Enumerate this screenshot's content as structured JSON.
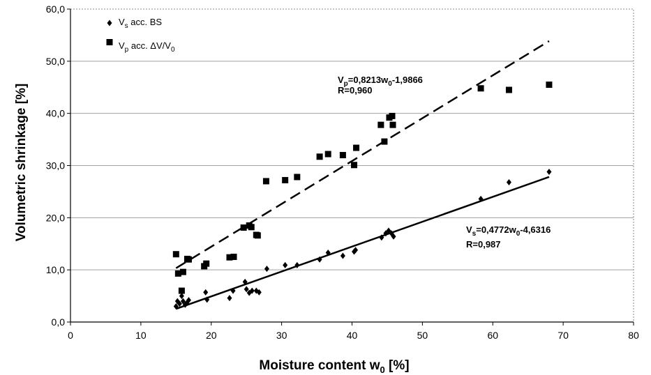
{
  "chart_data": {
    "type": "scatter",
    "xlabel": "Moisture content  w",
    "xlabel_sub": "0",
    "xlabel_unit": " [%]",
    "ylabel": "Volumetric shrinkage [%]",
    "xlim": [
      0,
      80
    ],
    "ylim": [
      0,
      60
    ],
    "x_ticks": [
      "0",
      "10",
      "20",
      "30",
      "40",
      "50",
      "60",
      "70",
      "80"
    ],
    "y_ticks": [
      "0,0",
      "10,0",
      "20,0",
      "30,0",
      "40,0",
      "50,0",
      "60,0"
    ],
    "grid": "horizontal",
    "legend_position": "top-left",
    "series": [
      {
        "name": "Vs acc. BS",
        "legend": {
          "v": "V",
          "sub": "s",
          "rest": " acc. BS"
        },
        "marker": "diamond",
        "x": [
          15.0,
          15.2,
          15.5,
          15.8,
          16.0,
          16.3,
          16.8,
          16.5,
          19.2,
          19.4,
          22.6,
          23.1,
          24.8,
          25.0,
          25.4,
          25.8,
          26.4,
          26.8,
          27.9,
          30.5,
          32.2,
          35.4,
          36.6,
          38.7,
          40.3,
          40.5,
          44.2,
          44.8,
          45.2,
          45.6,
          45.9,
          58.3,
          62.3,
          68.0
        ],
        "y": [
          3.0,
          4.0,
          3.5,
          5.0,
          4.0,
          3.3,
          4.2,
          3.6,
          5.7,
          4.3,
          4.6,
          6.0,
          7.7,
          6.3,
          5.6,
          6.0,
          6.0,
          5.7,
          10.2,
          10.9,
          10.9,
          12.0,
          13.3,
          12.7,
          13.5,
          13.8,
          16.2,
          17.0,
          17.5,
          17.0,
          16.4,
          23.6,
          26.8,
          28.8
        ]
      },
      {
        "name": "Vp acc. ΔV/V0",
        "legend": {
          "v": "V",
          "sub": "p",
          "rest": " acc. ΔV/V",
          "sub2": "0"
        },
        "marker": "square",
        "x": [
          15.0,
          15.3,
          15.8,
          16.0,
          16.6,
          16.8,
          19.0,
          19.3,
          22.6,
          23.2,
          24.6,
          25.4,
          25.7,
          26.4,
          26.6,
          27.8,
          30.5,
          32.2,
          35.4,
          36.6,
          38.7,
          40.3,
          40.6,
          44.1,
          44.6,
          45.3,
          45.7,
          45.8,
          58.3,
          62.3,
          68.0
        ],
        "y": [
          13.0,
          9.3,
          6.0,
          9.6,
          12.1,
          12.0,
          10.7,
          11.2,
          12.4,
          12.5,
          18.1,
          18.5,
          18.2,
          16.7,
          16.6,
          27.0,
          27.2,
          27.8,
          31.7,
          32.2,
          32.0,
          30.1,
          33.4,
          37.8,
          34.6,
          39.2,
          39.5,
          37.8,
          44.8,
          44.5,
          45.5
        ]
      }
    ],
    "fits": [
      {
        "series": "Vs acc. BS",
        "slope": 0.4772,
        "intercept": -4.6316,
        "x_range": [
          15,
          68
        ],
        "style": "solid",
        "equation": {
          "v": "V",
          "sub": "s",
          "rest": "=0,4772w",
          "sub2": "0",
          "rest2": "-4,6316"
        },
        "r_label": "R=0,987"
      },
      {
        "series": "Vp acc. ΔV/V0",
        "slope": 0.8213,
        "intercept": -1.9866,
        "x_range": [
          15,
          68
        ],
        "style": "dashed",
        "equation": {
          "v": "V",
          "sub": "p",
          "rest": "=0,8213w",
          "sub2": "0",
          "rest2": "-1,9866"
        },
        "r_label": "R=0,960"
      }
    ]
  }
}
